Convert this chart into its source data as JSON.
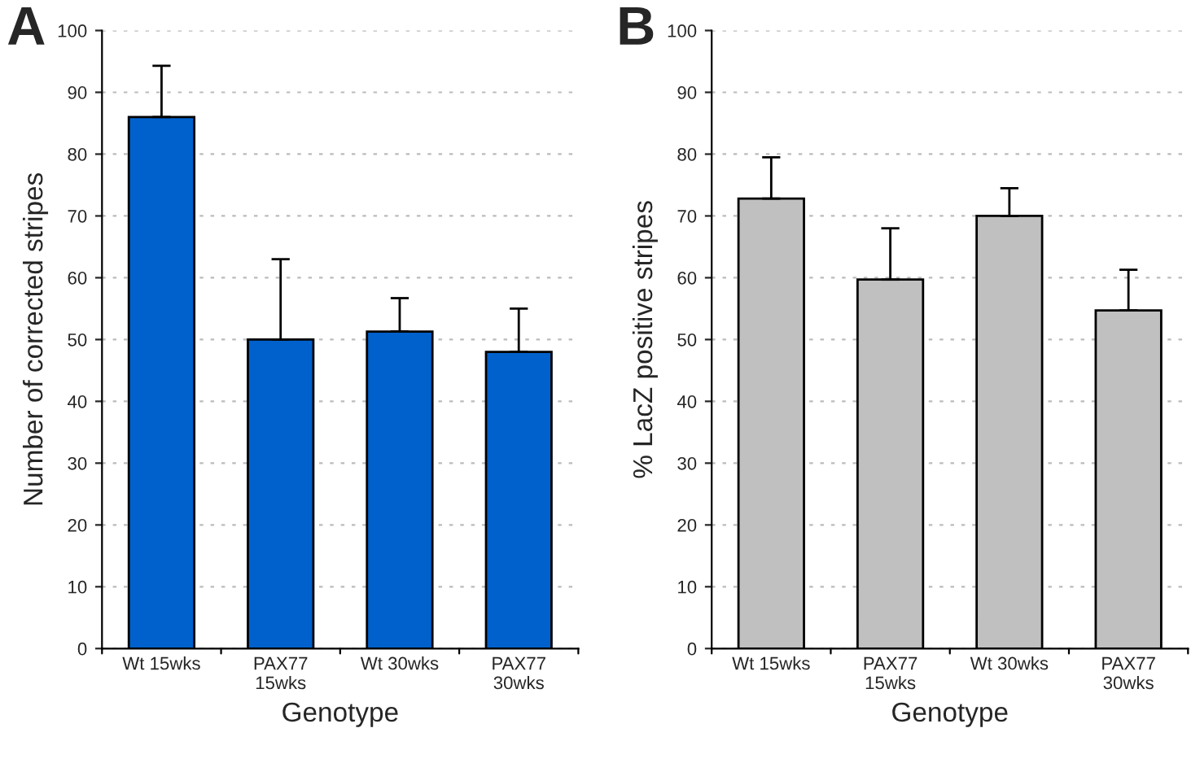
{
  "chart_data": [
    {
      "type": "bar",
      "annotations": [
        "A"
      ],
      "xlabel": "Genotype",
      "ylabel": "Number of corrected stripes",
      "categories": [
        "Wt 15wks",
        "PAX77\n15wks",
        "Wt 30wks",
        "PAX77\n30wks"
      ],
      "series": [
        {
          "color": "#0061cc",
          "values": [
            86,
            50,
            51.3,
            48
          ],
          "errors": [
            [
              86,
              94.3
            ],
            [
              50,
              63
            ],
            [
              51.3,
              56.7
            ],
            [
              48,
              55
            ]
          ]
        }
      ],
      "ylim": [
        0,
        100
      ],
      "yticks": [
        0,
        10,
        20,
        30,
        40,
        50,
        60,
        70,
        80,
        90,
        100
      ],
      "grid": "y",
      "legend": false
    },
    {
      "type": "bar",
      "annotations": [
        "B"
      ],
      "xlabel": "Genotype",
      "ylabel": "% LacZ positive stripes",
      "categories": [
        "Wt 15wks",
        "PAX77\n15wks",
        "Wt 30wks",
        "PAX77\n30wks"
      ],
      "series": [
        {
          "color": "#c0c0c0",
          "values": [
            72.8,
            59.7,
            70,
            54.7
          ],
          "errors": [
            [
              72.8,
              79.5
            ],
            [
              59.7,
              68
            ],
            [
              70,
              74.5
            ],
            [
              54.7,
              61.3
            ]
          ]
        }
      ],
      "ylim": [
        0,
        100
      ],
      "yticks": [
        0,
        10,
        20,
        30,
        40,
        50,
        60,
        70,
        80,
        90,
        100
      ],
      "grid": "y",
      "legend": false
    }
  ]
}
